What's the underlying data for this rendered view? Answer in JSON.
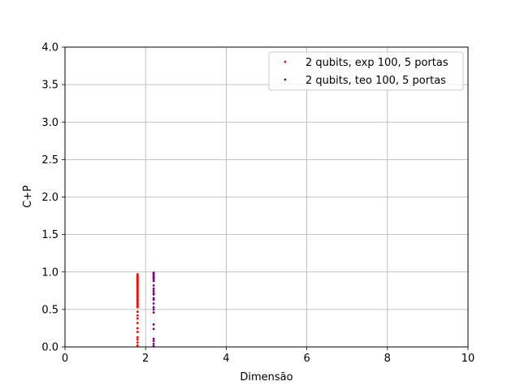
{
  "chart_data": {
    "type": "scatter",
    "title": "",
    "xlabel": "Dimensão",
    "ylabel": "C+P",
    "xlim": [
      0,
      10
    ],
    "ylim": [
      0,
      4.0
    ],
    "xticks": [
      "0",
      "2",
      "4",
      "6",
      "8",
      "10"
    ],
    "yticks": [
      "0.0",
      "0.5",
      "1.0",
      "1.5",
      "2.0",
      "2.5",
      "3.0",
      "3.5",
      "4.0"
    ],
    "grid": true,
    "legend_position": "top-right",
    "series": [
      {
        "name": "2 qubits, exp 100, 5 portas",
        "color": "#ff0000",
        "x": [
          1.8,
          1.8,
          1.8,
          1.8,
          1.8,
          1.8,
          1.8,
          1.8,
          1.8,
          1.8,
          1.8,
          1.8,
          1.8,
          1.8,
          1.8,
          1.8,
          1.8,
          1.8,
          1.8,
          1.8,
          1.8,
          1.8,
          1.8,
          1.8,
          1.8,
          1.8,
          1.8,
          1.8,
          1.8,
          1.8,
          1.8,
          1.8,
          1.8,
          1.8,
          1.8,
          1.8,
          1.8,
          1.8,
          1.8,
          1.8
        ],
        "y": [
          0.02,
          0.06,
          0.1,
          0.13,
          0.2,
          0.25,
          0.32,
          0.38,
          0.42,
          0.47,
          0.53,
          0.55,
          0.57,
          0.58,
          0.6,
          0.62,
          0.63,
          0.65,
          0.67,
          0.68,
          0.7,
          0.72,
          0.73,
          0.75,
          0.76,
          0.78,
          0.8,
          0.81,
          0.82,
          0.84,
          0.85,
          0.86,
          0.87,
          0.88,
          0.9,
          0.91,
          0.92,
          0.94,
          0.95,
          0.97
        ]
      },
      {
        "name": "2 qubits, teo 100, 5 portas",
        "color": "#800080",
        "x": [
          2.2,
          2.2,
          2.2,
          2.2,
          2.2,
          2.2,
          2.2,
          2.2,
          2.2,
          2.2,
          2.2,
          2.2,
          2.2,
          2.2,
          2.2,
          2.2,
          2.2,
          2.2,
          2.2,
          2.2,
          2.2,
          2.2,
          2.2,
          2.2,
          2.2,
          2.2
        ],
        "y": [
          0.01,
          0.04,
          0.08,
          0.11,
          0.24,
          0.3,
          0.46,
          0.5,
          0.53,
          0.58,
          0.63,
          0.65,
          0.7,
          0.72,
          0.75,
          0.78,
          0.82,
          0.88,
          0.9,
          0.92,
          0.93,
          0.94,
          0.96,
          0.97,
          0.98,
          0.99
        ]
      }
    ]
  }
}
